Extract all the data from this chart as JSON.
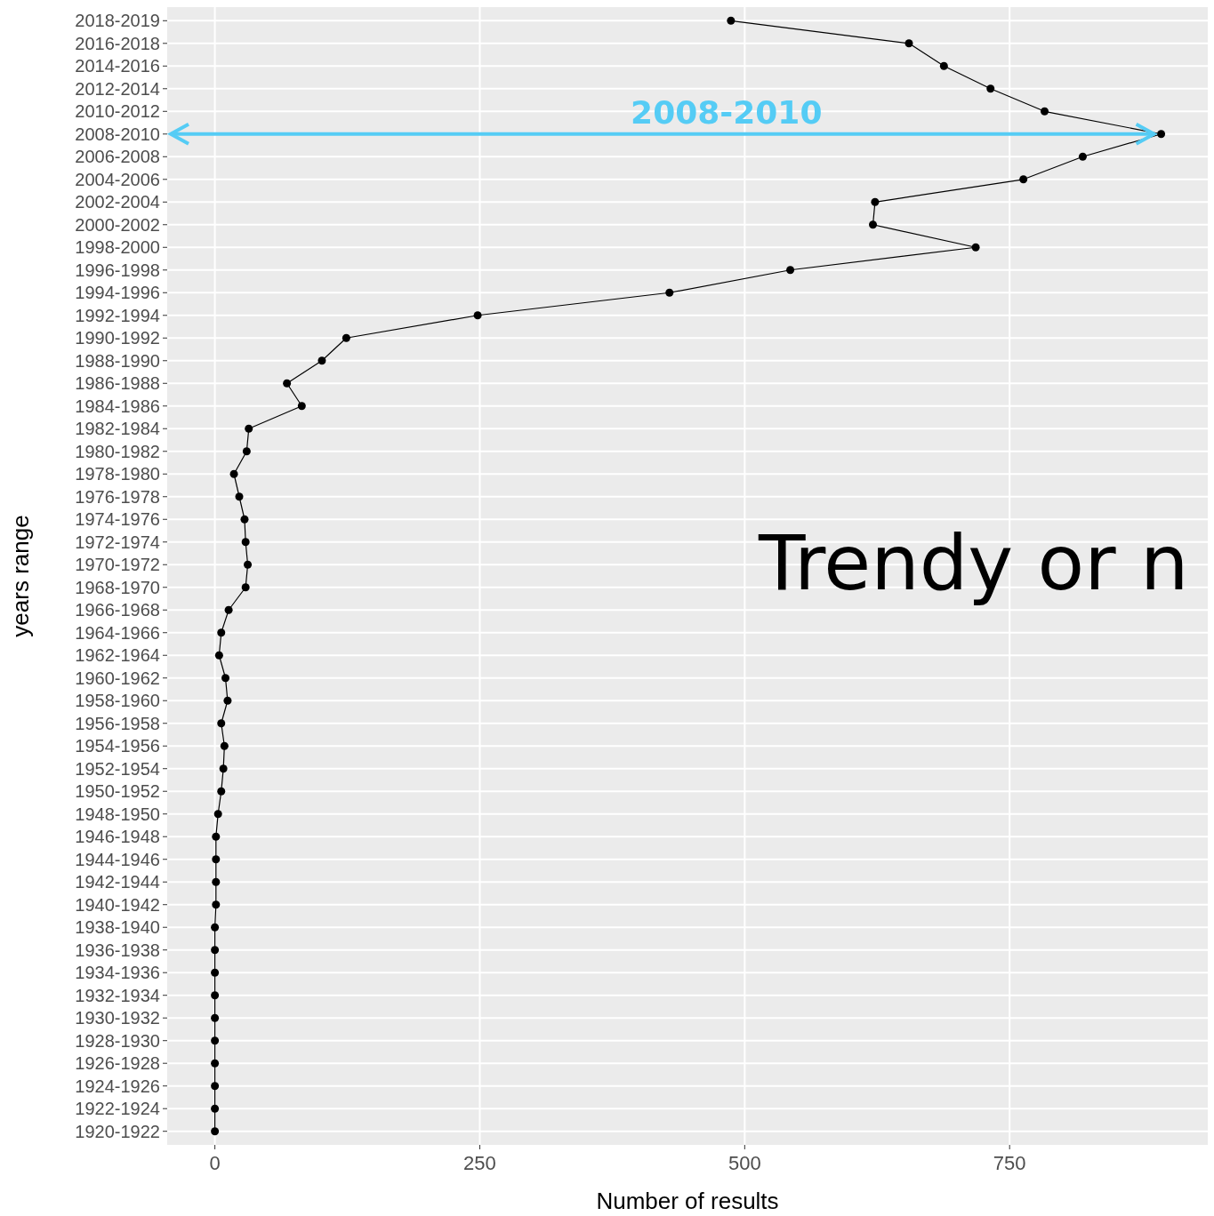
{
  "chart_data": {
    "type": "line",
    "orientation": "horizontal",
    "xlabel": "Number of results",
    "ylabel": "years range",
    "categories": [
      "2018-2019",
      "2016-2018",
      "2014-2016",
      "2012-2014",
      "2010-2012",
      "2008-2010",
      "2006-2008",
      "2004-2006",
      "2002-2004",
      "2000-2002",
      "1998-2000",
      "1996-1998",
      "1994-1996",
      "1992-1994",
      "1990-1992",
      "1988-1990",
      "1986-1988",
      "1984-1986",
      "1982-1984",
      "1980-1982",
      "1978-1980",
      "1976-1978",
      "1974-1976",
      "1972-1974",
      "1970-1972",
      "1968-1970",
      "1966-1968",
      "1964-1966",
      "1962-1964",
      "1960-1962",
      "1958-1960",
      "1956-1958",
      "1954-1956",
      "1952-1954",
      "1950-1952",
      "1948-1950",
      "1946-1948",
      "1944-1946",
      "1942-1944",
      "1940-1942",
      "1938-1940",
      "1936-1938",
      "1934-1936",
      "1932-1934",
      "1930-1932",
      "1928-1930",
      "1926-1928",
      "1924-1926",
      "1922-1924",
      "1920-1922"
    ],
    "series": [
      {
        "color": "#000000",
        "values": [
          487,
          655,
          688,
          732,
          783,
          893,
          819,
          763,
          623,
          621,
          718,
          543,
          429,
          248,
          124,
          101,
          68,
          82,
          32,
          30,
          18,
          23,
          28,
          29,
          31,
          29,
          13,
          6,
          4,
          10,
          12,
          6,
          9,
          8,
          6,
          3,
          1,
          1,
          1,
          1,
          0,
          0,
          0,
          0,
          0,
          0,
          0,
          0,
          0,
          0
        ]
      }
    ],
    "xlim": [
      -45,
      937
    ],
    "xticks": [
      0,
      250,
      500,
      750
    ],
    "grid": true,
    "marker": "circle",
    "line_style": "solid",
    "ref_lines": [
      {
        "axis": "y",
        "value": "2008-2010",
        "color": "#55ccf5"
      }
    ],
    "annotations": [
      {
        "text": "2008-2010",
        "y": "2008-2010"
      },
      "Trendy or n"
    ]
  }
}
